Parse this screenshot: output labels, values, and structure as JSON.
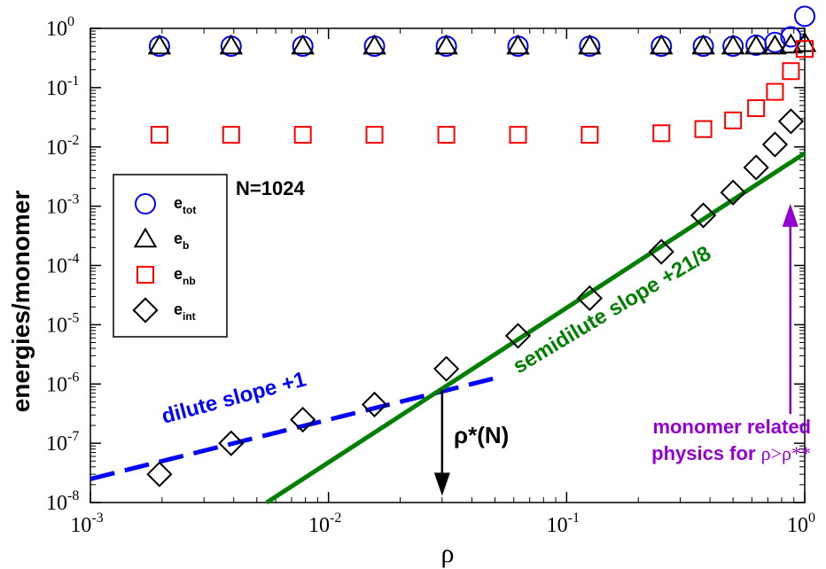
{
  "chart_data": {
    "type": "scatter",
    "x_scale": "log",
    "y_scale": "log",
    "xlim": [
      0.001,
      1
    ],
    "ylim": [
      1e-08,
      1
    ],
    "xlabel": "ρ",
    "ylabel": "energies/monomer",
    "x_ticks": [
      {
        "base": "10",
        "exp": "-3",
        "value": 0.001
      },
      {
        "base": "10",
        "exp": "-2",
        "value": 0.01
      },
      {
        "base": "10",
        "exp": "-1",
        "value": 0.1
      },
      {
        "base": "10",
        "exp": "0",
        "value": 1
      }
    ],
    "y_ticks": [
      {
        "base": "10",
        "exp": "0",
        "value": 1
      },
      {
        "base": "10",
        "exp": "-1",
        "value": 0.1
      },
      {
        "base": "10",
        "exp": "-2",
        "value": 0.01
      },
      {
        "base": "10",
        "exp": "-3",
        "value": 0.001
      },
      {
        "base": "10",
        "exp": "-4",
        "value": 0.0001
      },
      {
        "base": "10",
        "exp": "-5",
        "value": 1e-05
      },
      {
        "base": "10",
        "exp": "-6",
        "value": 1e-06
      },
      {
        "base": "10",
        "exp": "-7",
        "value": 1e-07
      },
      {
        "base": "10",
        "exp": "-8",
        "value": 1e-08
      }
    ],
    "x": [
      0.00195,
      0.0039,
      0.0078,
      0.0156,
      0.03125,
      0.0625,
      0.125,
      0.25,
      0.375,
      0.5,
      0.625,
      0.75,
      0.875,
      1.0
    ],
    "series": [
      {
        "name": "e_tot",
        "label": "e",
        "sub": "tot",
        "marker": "circle",
        "color": "#0000ff",
        "values": [
          0.5,
          0.5,
          0.5,
          0.5,
          0.5,
          0.5,
          0.5,
          0.5,
          0.5,
          0.5,
          0.52,
          0.58,
          0.72,
          1.6
        ]
      },
      {
        "name": "e_b",
        "label": "e",
        "sub": "b",
        "marker": "triangle",
        "color": "#000000",
        "values": [
          0.5,
          0.5,
          0.5,
          0.5,
          0.5,
          0.5,
          0.5,
          0.5,
          0.5,
          0.5,
          0.5,
          0.5,
          0.52,
          0.55
        ]
      },
      {
        "name": "e_nb",
        "label": "e",
        "sub": "nb",
        "marker": "square",
        "color": "#ff0000",
        "values": [
          0.016,
          0.016,
          0.016,
          0.016,
          0.016,
          0.016,
          0.016,
          0.017,
          0.02,
          0.028,
          0.045,
          0.085,
          0.19,
          0.45
        ]
      },
      {
        "name": "e_int",
        "label": "e",
        "sub": "int",
        "marker": "diamond",
        "color": "#000000",
        "values": [
          3e-08,
          1e-07,
          2.5e-07,
          4.5e-07,
          1.8e-06,
          6.5e-06,
          2.8e-05,
          0.00017,
          0.0007,
          0.0017,
          0.0045,
          0.011,
          0.027,
          null
        ]
      }
    ],
    "fit_lines": [
      {
        "name": "dilute",
        "label": "dilute slope +1",
        "color": "#0000ff",
        "dashed": true,
        "x": [
          0.001,
          0.05
        ],
        "y": [
          2.5e-08,
          1.25e-06
        ]
      },
      {
        "name": "semidilute",
        "label": "semidilute slope +21/8",
        "color": "#008000",
        "dashed": false,
        "x": [
          0.0055,
          1.0
        ],
        "y": [
          1e-08,
          0.0078
        ]
      }
    ],
    "arrows": [
      {
        "name": "rho-star",
        "color": "#000000",
        "x": 0.03,
        "y_from": 8e-07,
        "y_to": 1.3e-08
      },
      {
        "name": "rho-double-star",
        "color": "#9400d3",
        "x": 0.87,
        "y_from": 3.1e-07,
        "y_to": 0.0011
      }
    ],
    "annotations": {
      "n_label": "N=1024",
      "dilute": "dilute slope +1",
      "semidilute": "semidilute slope +21/8",
      "rho_star": "ρ*(N)",
      "monomer_line1": "monomer related",
      "monomer_line2_prefix": "physics for ",
      "monomer_line2_rho": "ρ>ρ**"
    }
  }
}
